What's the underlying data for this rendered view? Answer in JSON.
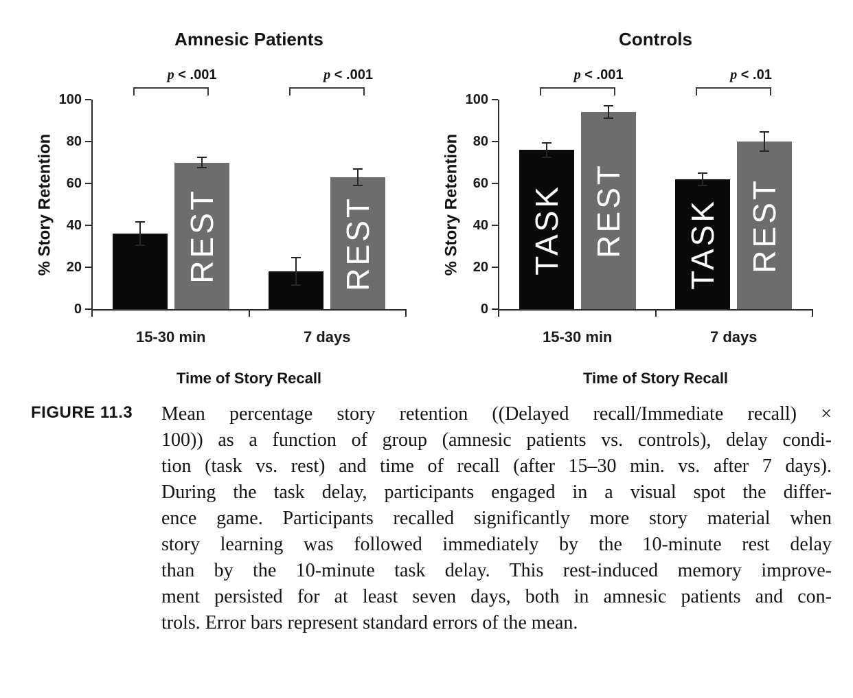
{
  "page": {
    "background": "#ffffff"
  },
  "figure_label": "FIGURE 11.3",
  "caption_lines": [
    "Mean percentage story retention ((Delayed recall/Immediate recall) ×",
    "100)) as a function of group (amnesic patients vs. controls), delay condi-",
    "tion (task vs. rest) and time of recall (after 15–30 min. vs. after 7 days).",
    "During the task delay, participants engaged in a visual spot the differ-",
    "ence game. Participants recalled significantly more story material when",
    "story learning was followed immediately by the 10-minute rest delay",
    "than by the 10-minute task delay. This rest-induced memory improve-",
    "ment persisted for at least seven days, both in amnesic patients and con-",
    "trols. Error bars represent standard errors of the mean."
  ],
  "chart_data": [
    {
      "type": "bar",
      "title": "Amnesic Patients",
      "categories": [
        "15-30 min",
        "7 days"
      ],
      "xlabel": "Time of Story Recall",
      "ylabel": "% Story Retention",
      "ylim": [
        0,
        100
      ],
      "yticks": [
        0,
        20,
        40,
        60,
        80,
        100
      ],
      "grid": false,
      "legend": "none",
      "series": [
        {
          "name": "TASK",
          "color": "#0a0a0a",
          "values": [
            36,
            18
          ],
          "se": [
            5.5,
            6.5
          ],
          "bar_labels": [
            "",
            ""
          ]
        },
        {
          "name": "REST",
          "color": "#6d6d6d",
          "values": [
            70,
            63
          ],
          "se": [
            2.5,
            4
          ],
          "bar_labels": [
            "REST",
            "REST"
          ]
        }
      ],
      "significance": [
        {
          "category": "15-30 min",
          "label": "p < .001"
        },
        {
          "category": "7 days",
          "label": "p < .001"
        }
      ]
    },
    {
      "type": "bar",
      "title": "Controls",
      "categories": [
        "15-30 min",
        "7 days"
      ],
      "xlabel": "Time of Story Recall",
      "ylabel": "% Story Retention",
      "ylim": [
        0,
        100
      ],
      "yticks": [
        0,
        20,
        40,
        60,
        80,
        100
      ],
      "grid": false,
      "legend": "none",
      "series": [
        {
          "name": "TASK",
          "color": "#0a0a0a",
          "values": [
            76,
            62
          ],
          "se": [
            3.5,
            3
          ],
          "bar_labels": [
            "TASK",
            "TASK"
          ]
        },
        {
          "name": "REST",
          "color": "#6d6d6d",
          "values": [
            94,
            80
          ],
          "se": [
            3,
            4.5
          ],
          "bar_labels": [
            "REST",
            "REST"
          ]
        }
      ],
      "significance": [
        {
          "category": "15-30 min",
          "label": "p < .001"
        },
        {
          "category": "7 days",
          "label": "p < .01"
        }
      ]
    }
  ]
}
